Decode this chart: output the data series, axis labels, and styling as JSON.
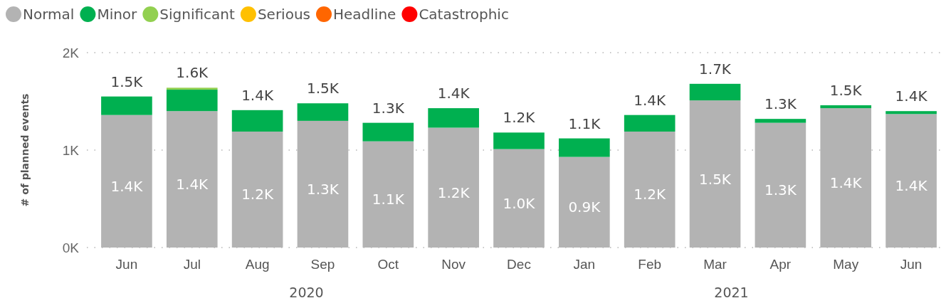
{
  "chart_data": {
    "type": "bar",
    "stacked": true,
    "ylabel": "# of planned events",
    "categories": [
      "Jun",
      "Jul",
      "Aug",
      "Sep",
      "Oct",
      "Nov",
      "Dec",
      "Jan",
      "Feb",
      "Mar",
      "Apr",
      "May",
      "Jun"
    ],
    "series": [
      {
        "name": "Normal",
        "color": "#b3b3b3",
        "values": [
          1360,
          1400,
          1190,
          1300,
          1090,
          1230,
          1010,
          930,
          1190,
          1510,
          1280,
          1430,
          1370
        ],
        "value_labels": [
          "1.4K",
          "1.4K",
          "1.2K",
          "1.3K",
          "1.1K",
          "1.2K",
          "1.0K",
          "0.9K",
          "1.2K",
          "1.5K",
          "1.3K",
          "1.4K",
          "1.4K"
        ]
      },
      {
        "name": "Minor",
        "color": "#00b050",
        "values": [
          190,
          220,
          220,
          180,
          190,
          200,
          170,
          190,
          170,
          170,
          40,
          30,
          30
        ]
      },
      {
        "name": "Significant",
        "color": "#92d050",
        "values": [
          0,
          20,
          0,
          0,
          0,
          0,
          0,
          0,
          0,
          0,
          0,
          0,
          0
        ]
      },
      {
        "name": "Serious",
        "color": "#ffc000",
        "values": [
          0,
          0,
          0,
          0,
          0,
          0,
          0,
          0,
          0,
          0,
          0,
          0,
          0
        ]
      },
      {
        "name": "Headline",
        "color": "#ff6600",
        "values": [
          0,
          0,
          0,
          0,
          0,
          0,
          0,
          0,
          0,
          0,
          0,
          0,
          0
        ]
      },
      {
        "name": "Catastrophic",
        "color": "#ff0000",
        "values": [
          0,
          0,
          0,
          0,
          0,
          0,
          0,
          0,
          0,
          0,
          0,
          0,
          0
        ]
      }
    ],
    "totals": [
      "1.5K",
      "1.6K",
      "1.4K",
      "1.5K",
      "1.3K",
      "1.4K",
      "1.2K",
      "1.1K",
      "1.4K",
      "1.7K",
      "1.3K",
      "1.5K",
      "1.4K"
    ],
    "ylim": [
      0,
      2000
    ],
    "yticks": [
      {
        "value": 0,
        "label": "0K"
      },
      {
        "value": 1000,
        "label": "1K"
      },
      {
        "value": 2000,
        "label": "2K"
      }
    ],
    "grid": "y",
    "legend": "top left",
    "marker": "circle",
    "annotations": [
      "2020",
      "2021"
    ]
  }
}
